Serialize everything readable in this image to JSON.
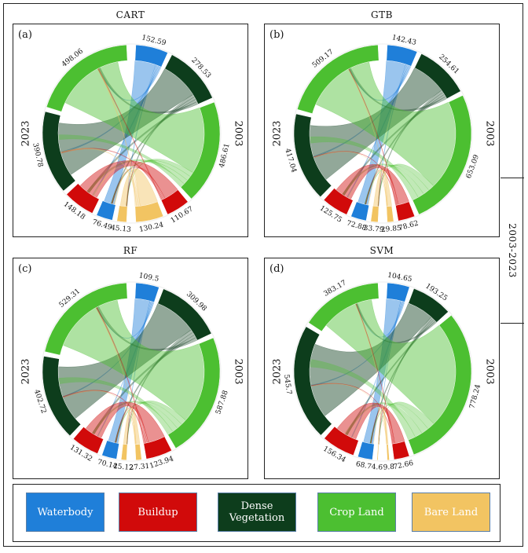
{
  "figure": {
    "period_label": "2003-2023",
    "legend": [
      {
        "label": "Waterbody",
        "color": "#1f7fd9",
        "text_color": "#ffffff"
      },
      {
        "label": "Buildup",
        "color": "#d10a0a",
        "text_color": "#ffffff"
      },
      {
        "label": "Dense Vegetation",
        "color": "#0d3d1c",
        "text_color": "#ffffff"
      },
      {
        "label": "Crop Land",
        "color": "#4cbf31",
        "text_color": "#ffffff"
      },
      {
        "label": "Bare Land",
        "color": "#f2c462",
        "text_color": "#ffffff"
      }
    ]
  },
  "chart_data": [
    {
      "type": "chord",
      "title": "CART",
      "panel_label": "(a)",
      "year_labels": {
        "left": "2023",
        "right": "2003"
      },
      "classes": [
        "Waterbody",
        "Buildup",
        "Dense Vegetation",
        "Crop Land",
        "Bare Land"
      ],
      "year_2003": {
        "Waterbody": 152.59,
        "Dense Vegetation": 278.53,
        "Crop Land": 486.61,
        "Buildup": 110.67,
        "Bare Land": 130.24
      },
      "year_2023": {
        "Bare Land": 45.13,
        "Waterbody": 76.49,
        "Buildup": 148.18,
        "Dense Vegetation": 390.78,
        "Crop Land": 498.06
      }
    },
    {
      "type": "chord",
      "title": "GTB",
      "panel_label": "(b)",
      "year_labels": {
        "left": "2023",
        "right": "2003"
      },
      "classes": [
        "Waterbody",
        "Buildup",
        "Dense Vegetation",
        "Crop Land",
        "Bare Land"
      ],
      "year_2003": {
        "Waterbody": 142.43,
        "Dense Vegetation": 254.61,
        "Crop Land": 653.09,
        "Buildup": 78.62,
        "Bare Land": 29.85
      },
      "year_2023": {
        "Bare Land": 33.79,
        "Waterbody": 72.88,
        "Buildup": 125.75,
        "Dense Vegetation": 417.04,
        "Crop Land": 509.17
      }
    },
    {
      "type": "chord",
      "title": "RF",
      "panel_label": "(c)",
      "year_labels": {
        "left": "2023",
        "right": "2003"
      },
      "classes": [
        "Waterbody",
        "Buildup",
        "Dense Vegetation",
        "Crop Land",
        "Bare Land"
      ],
      "year_2003": {
        "Waterbody": 109.5,
        "Dense Vegetation": 309.98,
        "Crop Land": 587.88,
        "Buildup": 123.94,
        "Bare Land": 27.31
      },
      "year_2023": {
        "Bare Land": 25.12,
        "Waterbody": 70.14,
        "Buildup": 131.32,
        "Dense Vegetation": 402.72,
        "Crop Land": 529.31
      }
    },
    {
      "type": "chord",
      "title": "SVM",
      "panel_label": "(d)",
      "year_labels": {
        "left": "2023",
        "right": "2003"
      },
      "classes": [
        "Waterbody",
        "Buildup",
        "Dense Vegetation",
        "Crop Land",
        "Bare Land"
      ],
      "year_2003": {
        "Waterbody": 104.65,
        "Dense Vegetation": 193.25,
        "Crop Land": 778.24,
        "Buildup": 72.66,
        "Bare Land": 9.8
      },
      "year_2023": {
        "Bare Land": 4.6,
        "Waterbody": 68.7,
        "Buildup": 156.34,
        "Dense Vegetation": 545.7,
        "Crop Land": 383.17
      }
    }
  ]
}
